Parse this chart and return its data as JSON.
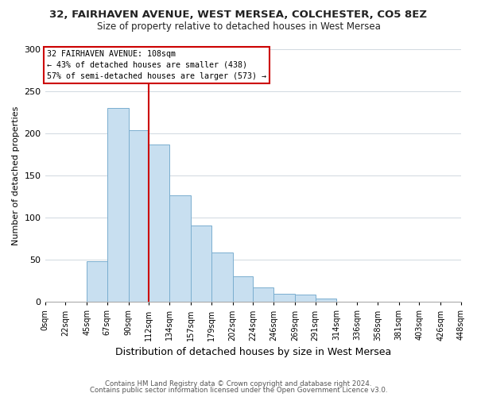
{
  "title": "32, FAIRHAVEN AVENUE, WEST MERSEA, COLCHESTER, CO5 8EZ",
  "subtitle": "Size of property relative to detached houses in West Mersea",
  "xlabel": "Distribution of detached houses by size in West Mersea",
  "ylabel": "Number of detached properties",
  "bar_color": "#c8dff0",
  "bar_edge_color": "#7aaecf",
  "bin_edges": [
    0,
    22,
    45,
    67,
    90,
    112,
    134,
    157,
    179,
    202,
    224,
    246,
    269,
    291,
    314,
    336,
    358,
    381,
    403,
    426,
    448
  ],
  "bin_labels": [
    "0sqm",
    "22sqm",
    "45sqm",
    "67sqm",
    "90sqm",
    "112sqm",
    "134sqm",
    "157sqm",
    "179sqm",
    "202sqm",
    "224sqm",
    "246sqm",
    "269sqm",
    "291sqm",
    "314sqm",
    "336sqm",
    "358sqm",
    "381sqm",
    "403sqm",
    "426sqm",
    "448sqm"
  ],
  "counts": [
    0,
    0,
    48,
    230,
    204,
    187,
    126,
    91,
    59,
    30,
    17,
    10,
    9,
    4,
    0,
    0,
    0,
    0,
    0,
    0
  ],
  "ylim": [
    0,
    300
  ],
  "yticks": [
    0,
    50,
    100,
    150,
    200,
    250,
    300
  ],
  "vline_x": 112,
  "vline_color": "#cc0000",
  "annotation_title": "32 FAIRHAVEN AVENUE: 108sqm",
  "annotation_line1": "← 43% of detached houses are smaller (438)",
  "annotation_line2": "57% of semi-detached houses are larger (573) →",
  "annotation_box_edge": "#cc0000",
  "footer1": "Contains HM Land Registry data © Crown copyright and database right 2024.",
  "footer2": "Contains public sector information licensed under the Open Government Licence v3.0.",
  "background_color": "#ffffff",
  "plot_bg_color": "#ffffff"
}
